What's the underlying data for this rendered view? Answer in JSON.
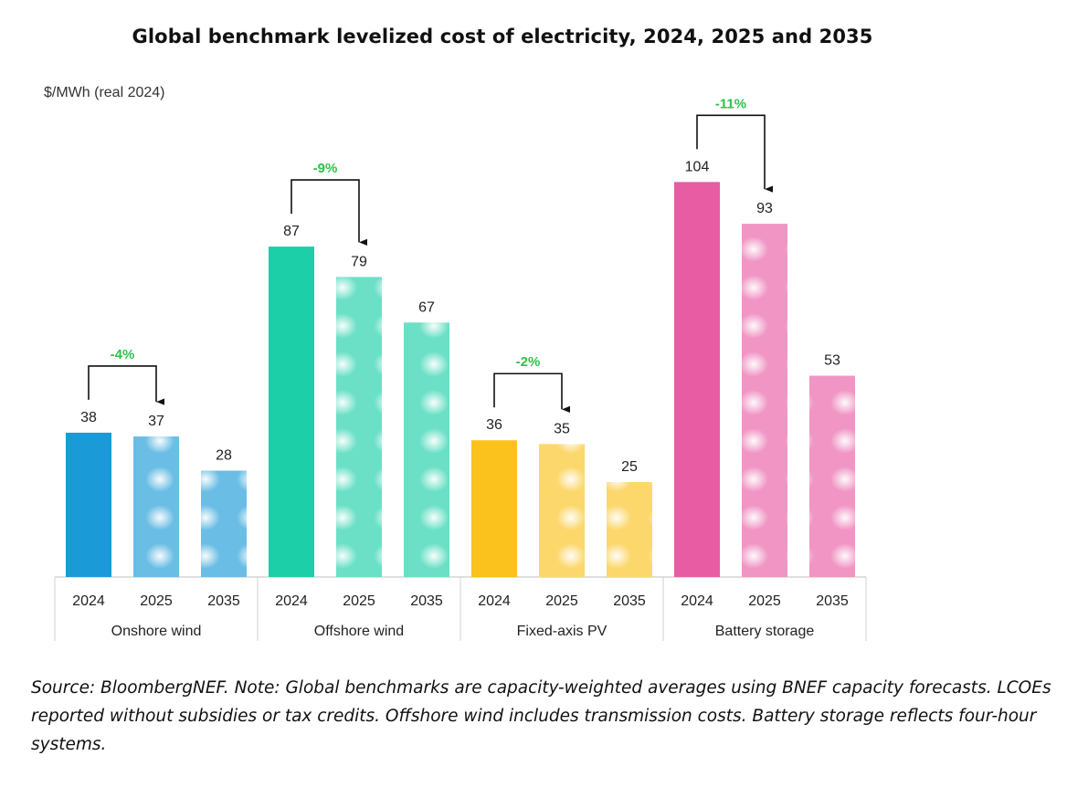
{
  "title": "Global benchmark levelized cost of electricity, 2024, 2025 and 2035",
  "unit_label": "$/MWh (real 2024)",
  "source_note": "Source: BloombergNEF. Note: Global benchmarks are capacity-weighted averages using BNEF capacity forecasts. LCOEs reported without subsidies or tax credits. Offshore wind includes transmission costs. Battery storage reflects four-hour systems.",
  "chart_data": {
    "type": "bar",
    "title": "Global benchmark levelized cost of electricity, 2024, 2025 and 2035",
    "ylabel": "$/MWh (real 2024)",
    "xlabel": "",
    "ylim": [
      0,
      125
    ],
    "grid": false,
    "groups": [
      {
        "name": "Onshore wind",
        "color": "#1a9ad6",
        "categories": [
          "2024",
          "2025",
          "2035"
        ],
        "values": [
          38,
          37,
          28
        ],
        "change_label": "-4%"
      },
      {
        "name": "Offshore wind",
        "color": "#1ccfa8",
        "categories": [
          "2024",
          "2025",
          "2035"
        ],
        "values": [
          87,
          79,
          67
        ],
        "change_label": "-9%"
      },
      {
        "name": "Fixed-axis PV",
        "color": "#fbc21d",
        "categories": [
          "2024",
          "2025",
          "2035"
        ],
        "values": [
          36,
          35,
          25
        ],
        "change_label": "-2%"
      },
      {
        "name": "Battery storage",
        "color": "#e85ca4",
        "categories": [
          "2024",
          "2025",
          "2035"
        ],
        "values": [
          104,
          93,
          53
        ],
        "change_label": "-11%"
      }
    ],
    "change_label_color": "#2ec24a"
  }
}
